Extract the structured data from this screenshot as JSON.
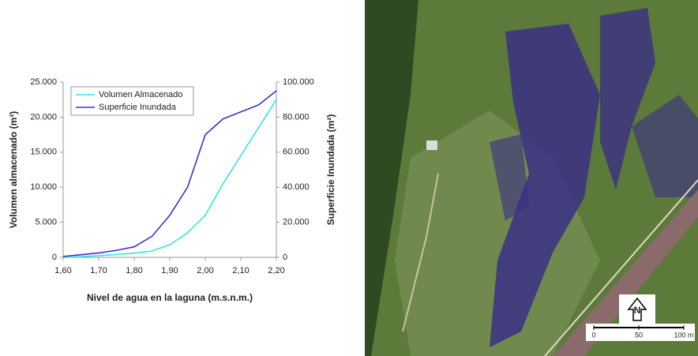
{
  "chart_data": {
    "type": "line",
    "x_label": "Nivel de agua en la laguna (m.s.n.m.)",
    "y_label": "Volumen almacenado (m³)",
    "y2_label": "Superficie Inundada (m²)",
    "x": [
      1.6,
      1.65,
      1.7,
      1.75,
      1.8,
      1.85,
      1.9,
      1.95,
      2.0,
      2.05,
      2.1,
      2.15,
      2.2
    ],
    "series": [
      {
        "name": "Volumen Almacenado",
        "color": "#33e5e5",
        "values": [
          0,
          100,
          250,
          400,
          600,
          900,
          1800,
          3500,
          6000,
          10500,
          14500,
          18500,
          22500
        ]
      },
      {
        "name": "Superficie Inundada",
        "color": "#3a2fd0",
        "axis": "y2",
        "values": [
          500,
          1500,
          2500,
          4000,
          6000,
          12000,
          24000,
          40000,
          70000,
          79000,
          83000,
          87000,
          95000
        ]
      }
    ],
    "xlim": [
      1.6,
      2.2
    ],
    "xticks": [
      {
        "value": 1.6,
        "label": "1,60"
      },
      {
        "value": 1.7,
        "label": "1,70"
      },
      {
        "value": 1.8,
        "label": "1,80"
      },
      {
        "value": 1.9,
        "label": "1,90"
      },
      {
        "value": 2.0,
        "label": "2,00"
      },
      {
        "value": 2.1,
        "label": "2,10"
      },
      {
        "value": 2.2,
        "label": "2,20"
      }
    ],
    "ylim": [
      0,
      25000
    ],
    "yticks": [
      0,
      {
        "value": 5000,
        "label": "5.000"
      },
      {
        "value": 10000,
        "label": "10.000"
      },
      {
        "value": 15000,
        "label": "15.000"
      },
      {
        "value": 20000,
        "label": "20.000"
      },
      {
        "value": 25000,
        "label": "25.000"
      }
    ],
    "y2lim": [
      0,
      100000
    ],
    "y2ticks": [
      0,
      {
        "value": 20000,
        "label": "20.000"
      },
      {
        "value": 40000,
        "label": "40.000"
      },
      {
        "value": 60000,
        "label": "60.000"
      },
      {
        "value": 80000,
        "label": "80.000"
      },
      {
        "value": 100000,
        "label": "100.000"
      }
    ],
    "legend": "top-left"
  },
  "map_overlay": {
    "north_label": "N",
    "scale_labels": [
      "0",
      "50",
      "100 m"
    ]
  }
}
